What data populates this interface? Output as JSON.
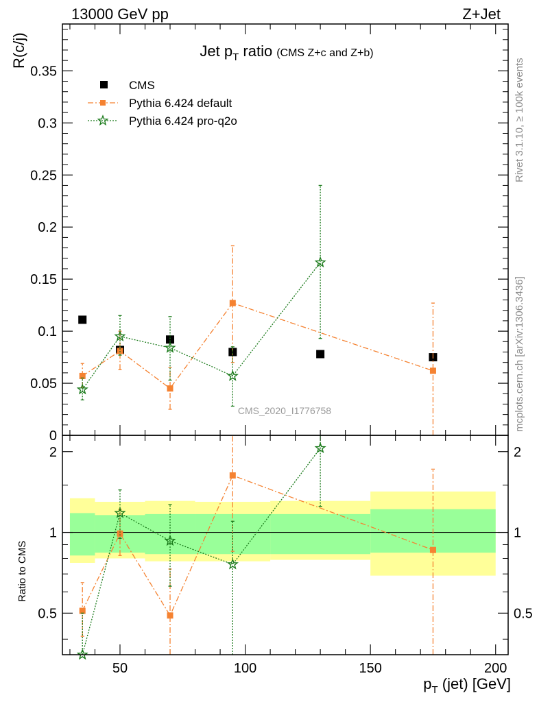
{
  "header": {
    "left": "13000 GeV pp",
    "right": "Z+Jet"
  },
  "side_labels": {
    "rivet": "Rivet 3.1.10, ≥ 100k events",
    "mcplots": "mcplots.cern.ch [arXiv:1306.3436]"
  },
  "watermark": "CMS_2020_I1776758",
  "chart_data": [
    {
      "type": "scatter",
      "panel": "main",
      "title": "Jet p_T ratio (CMS  Z+c and Z+b)",
      "title_main": "Jet p",
      "title_sub": "T",
      "title_rest": " ratio",
      "title_paren": "(CMS  Z+c and Z+b)",
      "ylabel": "R(c/j)",
      "xlim": [
        27,
        205
      ],
      "ylim": [
        0,
        0.395
      ],
      "y_ticks": [
        0,
        0.05,
        0.1,
        0.15,
        0.2,
        0.25,
        0.3,
        0.35
      ],
      "y_tick_labels": [
        "0",
        "0.05",
        "0.1",
        "0.15",
        "0.2",
        "0.25",
        "0.3",
        "0.35"
      ],
      "legend_position": "top-left",
      "series": [
        {
          "name": "CMS",
          "style": "marker",
          "color": "#000000",
          "x": [
            35,
            50,
            70,
            95,
            130,
            175
          ],
          "y": [
            0.111,
            0.082,
            0.092,
            0.08,
            0.078,
            0.075
          ],
          "x_low": [
            30,
            40,
            60,
            80,
            110,
            150
          ],
          "x_high": [
            40,
            60,
            80,
            110,
            150,
            200
          ]
        },
        {
          "name": "Pythia 6.424 default",
          "style": "dashdot",
          "color": "#f58231",
          "x": [
            35,
            50,
            70,
            95,
            175
          ],
          "y": [
            0.057,
            0.081,
            0.045,
            0.127,
            0.062
          ],
          "y_err_low": [
            0.046,
            0.063,
            0.025,
            0.07,
            0.0
          ],
          "y_err_high": [
            0.069,
            0.1,
            0.065,
            0.182,
            0.127
          ]
        },
        {
          "name": "Pythia 6.424 pro-q2o",
          "style": "dotted",
          "color": "#1a7a1a",
          "x": [
            35,
            50,
            70,
            95,
            130
          ],
          "y": [
            0.044,
            0.095,
            0.084,
            0.057,
            0.166
          ],
          "y_err_low": [
            0.034,
            0.077,
            0.053,
            0.028,
            0.093
          ],
          "y_err_high": [
            0.055,
            0.115,
            0.114,
            0.085,
            0.24
          ]
        }
      ]
    },
    {
      "type": "scatter",
      "panel": "ratio",
      "ylabel": "Ratio to CMS",
      "xlabel": "p_T (jet) [GeV]",
      "xlabel_main": "p",
      "xlabel_sub": "T",
      "xlabel_rest": " (jet) [GeV]",
      "xlim": [
        27,
        205
      ],
      "ylim": [
        0.35,
        2.3
      ],
      "y_scale": "log",
      "y_ticks": [
        0.5,
        1,
        2
      ],
      "y_tick_labels": [
        "0.5",
        "1",
        "2"
      ],
      "x_ticks": [
        50,
        100,
        150,
        200
      ],
      "x_tick_labels": [
        "50",
        "100",
        "150",
        "200"
      ],
      "bands": {
        "inner_color": "#99ff99",
        "outer_color": "#ffff99",
        "bins": [
          {
            "x_low": 30,
            "x_high": 40,
            "inner": [
              0.82,
              1.18
            ],
            "outer": [
              0.77,
              1.34
            ]
          },
          {
            "x_low": 40,
            "x_high": 60,
            "inner": [
              0.84,
              1.16
            ],
            "outer": [
              0.8,
              1.3
            ]
          },
          {
            "x_low": 60,
            "x_high": 80,
            "inner": [
              0.83,
              1.17
            ],
            "outer": [
              0.78,
              1.31
            ]
          },
          {
            "x_low": 80,
            "x_high": 110,
            "inner": [
              0.83,
              1.17
            ],
            "outer": [
              0.78,
              1.3
            ]
          },
          {
            "x_low": 110,
            "x_high": 150,
            "inner": [
              0.83,
              1.17
            ],
            "outer": [
              0.79,
              1.31
            ]
          },
          {
            "x_low": 150,
            "x_high": 200,
            "inner": [
              0.84,
              1.22
            ],
            "outer": [
              0.69,
              1.42
            ]
          }
        ]
      },
      "series": [
        {
          "name": "Pythia 6.424 default",
          "style": "dashdot",
          "color": "#f58231",
          "x": [
            35,
            50,
            70,
            95,
            175
          ],
          "y": [
            0.51,
            0.99,
            0.49,
            1.63,
            0.86
          ],
          "y_err_low": [
            0.41,
            0.82,
            0.27,
            0.85,
            0.3
          ],
          "y_err_high": [
            0.65,
            1.22,
            0.73,
            2.3,
            1.72
          ]
        },
        {
          "name": "Pythia 6.424 pro-q2o",
          "style": "dotted",
          "color": "#1a7a1a",
          "x": [
            35,
            50,
            70,
            95,
            130
          ],
          "y": [
            0.35,
            1.18,
            0.93,
            0.76,
            2.06
          ],
          "y_err_low": [
            0.3,
            0.95,
            0.63,
            0.35,
            1.25
          ],
          "y_err_high": [
            0.5,
            1.44,
            1.27,
            1.1,
            2.3
          ]
        }
      ]
    }
  ]
}
